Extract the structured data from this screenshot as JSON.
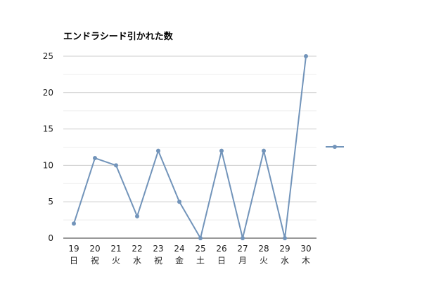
{
  "chart_data": {
    "type": "line",
    "title": "エンドラシード引かれた数",
    "xlabel": "",
    "ylabel": "",
    "categories": [
      "19",
      "20",
      "21",
      "22",
      "23",
      "24",
      "25",
      "26",
      "27",
      "28",
      "29",
      "30"
    ],
    "category_sublabels": [
      "日",
      "祝",
      "火",
      "水",
      "祝",
      "金",
      "土",
      "日",
      "月",
      "火",
      "水",
      "木"
    ],
    "series": [
      {
        "values": [
          2,
          11,
          10,
          3,
          12,
          5,
          0,
          12,
          0,
          12,
          0,
          25
        ],
        "color": "#7294ba"
      }
    ],
    "ylim": [
      0,
      25
    ],
    "yticks": [
      0,
      5,
      10,
      15,
      20,
      25
    ],
    "grid": true,
    "legend_position": "right"
  }
}
